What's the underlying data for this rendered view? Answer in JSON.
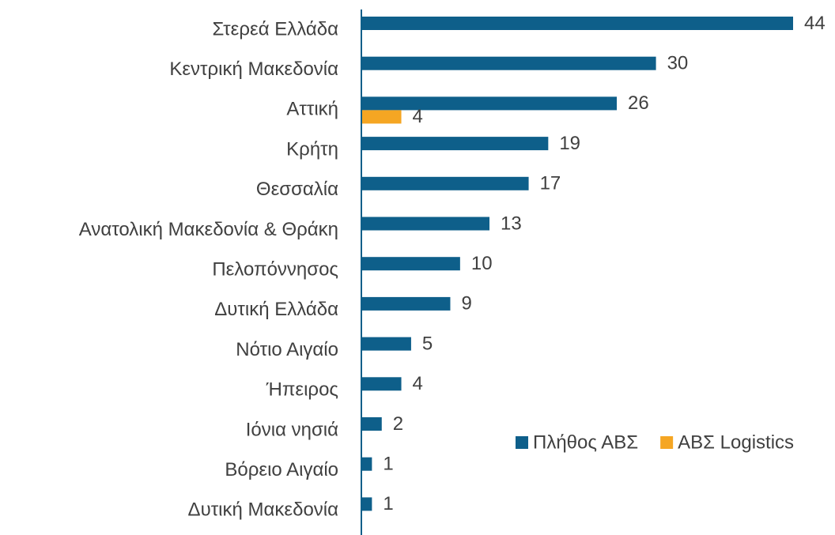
{
  "chart_data": {
    "type": "hbar",
    "categories": [
      "Στερεά Ελλάδα",
      "Κεντρική Μακεδονία",
      "Αττική",
      "Κρήτη",
      "Θεσσαλία",
      "Ανατολική Μακεδονία & Θράκη",
      "Πελοπόννησος",
      "Δυτική Ελλάδα",
      "Νότιο Αιγαίο",
      "Ήπειρος",
      "Ιόνια νησιά",
      "Βόρειο Αιγαίο",
      "Δυτική Μακεδονία"
    ],
    "series": [
      {
        "name": "Πλήθος ΑΒΣ",
        "color": "#0e5f8a",
        "values": [
          44,
          30,
          26,
          19,
          17,
          13,
          10,
          9,
          5,
          4,
          2,
          1,
          1
        ]
      },
      {
        "name": "ΑΒΣ Logistics",
        "color": "#f5a623",
        "values": [
          null,
          null,
          4,
          null,
          null,
          null,
          null,
          null,
          null,
          null,
          null,
          null,
          null
        ]
      }
    ],
    "xlim": [
      0,
      44
    ],
    "legend": "lower right"
  }
}
